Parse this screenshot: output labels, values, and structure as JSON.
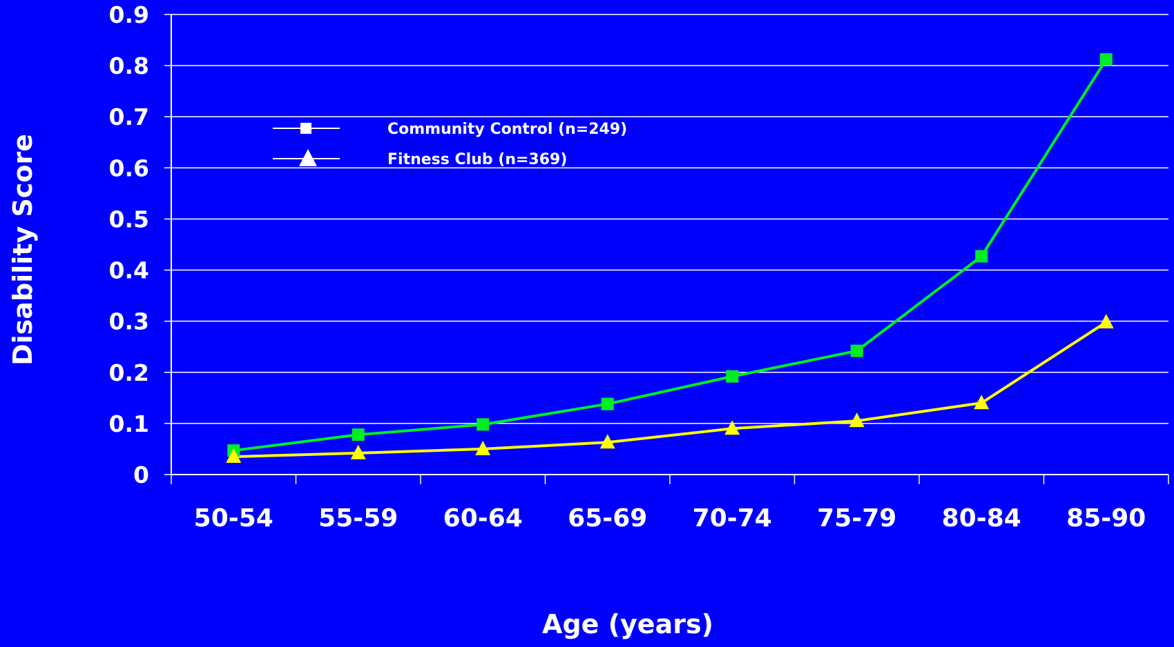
{
  "colors": {
    "background": "#0000ff",
    "axis": "#ffffff",
    "community_series": "#00ee22",
    "fitness_series": "#ffff00"
  },
  "chart_data": {
    "type": "line",
    "title": "",
    "xlabel": "Age (years)",
    "ylabel": "Disability Score",
    "categories": [
      "50-54",
      "55-59",
      "60-64",
      "65-69",
      "70-74",
      "75-79",
      "80-84",
      "85-90"
    ],
    "ylim": [
      0,
      0.9
    ],
    "yticks": [
      "0",
      "0.1",
      "0.2",
      "0.3",
      "0.4",
      "0.5",
      "0.6",
      "0.7",
      "0.8",
      "0.9"
    ],
    "grid": true,
    "legend_position": "upper-left",
    "series": [
      {
        "name": "Community Control (n=249)",
        "marker": "square",
        "values": [
          0.047,
          0.078,
          0.098,
          0.138,
          0.192,
          0.242,
          0.427,
          0.812
        ]
      },
      {
        "name": "Fitness Club (n=369)",
        "marker": "triangle",
        "values": [
          0.035,
          0.042,
          0.05,
          0.063,
          0.09,
          0.105,
          0.14,
          0.298
        ]
      }
    ]
  }
}
